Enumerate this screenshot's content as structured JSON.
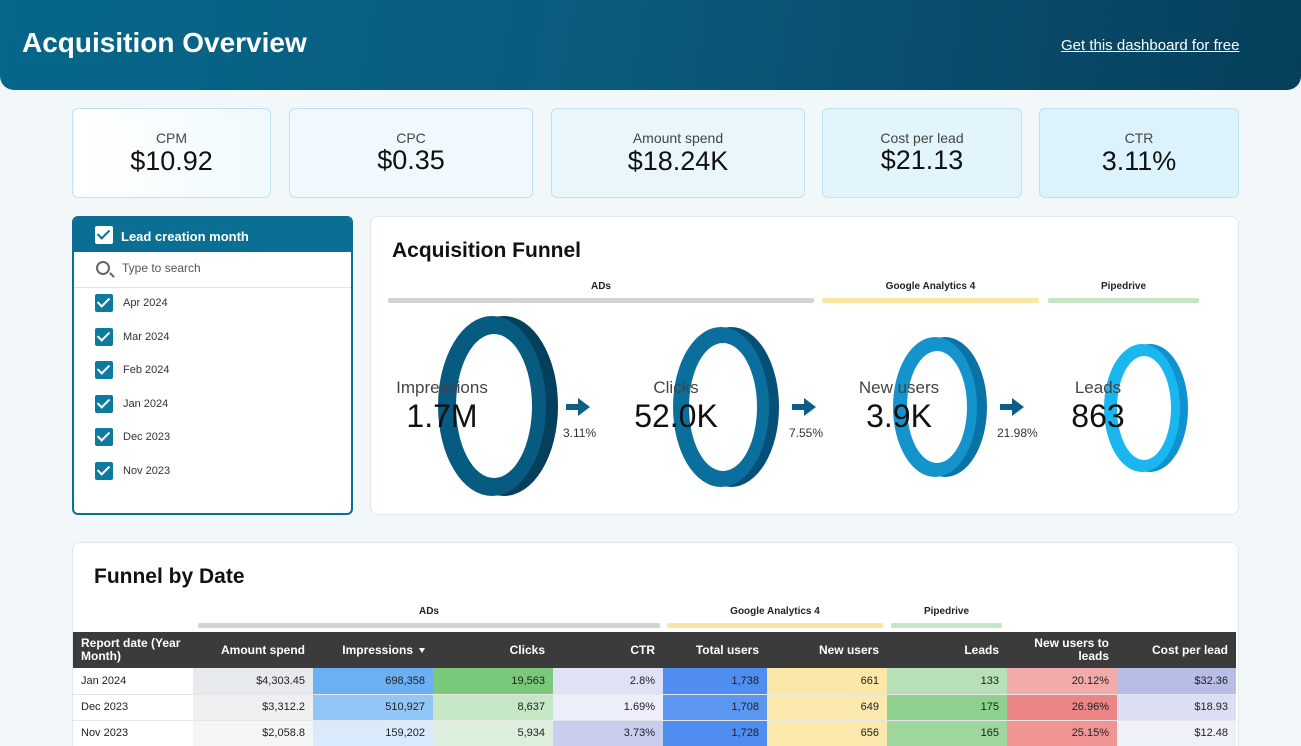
{
  "header": {
    "title": "Acquisition Overview",
    "link": "Get this dashboard for free"
  },
  "kpis": [
    {
      "label": "CPM",
      "value": "$10.92"
    },
    {
      "label": "CPC",
      "value": "$0.35"
    },
    {
      "label": "Amount spend",
      "value": "$18.24K"
    },
    {
      "label": "Cost per lead",
      "value": "$21.13"
    },
    {
      "label": "CTR",
      "value": "3.11%"
    }
  ],
  "filter": {
    "title": "Lead creation month",
    "search_placeholder": "Type to search",
    "items": [
      "Apr 2024",
      "Mar 2024",
      "Feb 2024",
      "Jan 2024",
      "Dec 2023",
      "Nov 2023"
    ]
  },
  "funnel": {
    "title": "Acquisition Funnel",
    "groups": [
      "ADs",
      "Google Analytics 4",
      "Pipedrive"
    ],
    "stages": [
      {
        "label": "Impressions",
        "value": "1.7M"
      },
      {
        "label": "Clicks",
        "value": "52.0K"
      },
      {
        "label": "New users",
        "value": "3.9K"
      },
      {
        "label": "Leads",
        "value": "863"
      }
    ],
    "conversions": [
      "3.11%",
      "7.55%",
      "21.98%"
    ],
    "colors": {
      "ads": "#d3d3d3",
      "ga4": "#fbe5a3",
      "pipedrive": "#c6e4c6"
    }
  },
  "table_section": {
    "title": "Funnel by Date",
    "groups": [
      "ADs",
      "Google Analytics 4",
      "Pipedrive"
    ],
    "columns": [
      "Report date (Year Month)",
      "Amount spend",
      "Impressions",
      "Clicks",
      "CTR",
      "Total users",
      "New users",
      "Leads",
      "New users to leads",
      "Cost per lead"
    ],
    "rows": [
      [
        "Jan 2024",
        "$4,303.45",
        "698,358",
        "19,563",
        "2.8%",
        "1,738",
        "661",
        "133",
        "20.12%",
        "$32.36"
      ],
      [
        "Dec 2023",
        "$3,312.2",
        "510,927",
        "8,637",
        "1.69%",
        "1,708",
        "649",
        "175",
        "26.96%",
        "$18.93"
      ],
      [
        "Nov 2023",
        "$2,058.8",
        "159,202",
        "5,934",
        "3.73%",
        "1,728",
        "656",
        "165",
        "25.15%",
        "$12.48"
      ]
    ]
  }
}
